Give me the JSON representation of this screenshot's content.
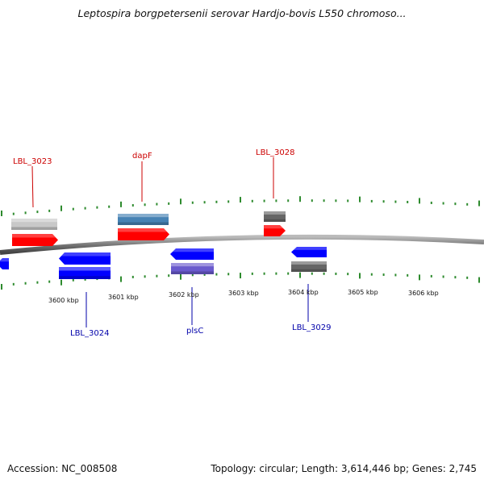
{
  "title": "Leptospira borgpetersenii serovar Hardjo-bovis L550 chromoso...",
  "footer": {
    "accession": "Accession: NC_008508",
    "info": "Topology: circular; Length: 3,614,446 bp; Genes: 2,745"
  },
  "colors": {
    "forward_red": "#ff0000",
    "reverse_blue": "#0000ff",
    "steelblue": "#4682b4",
    "lightgray": "#c8c8c8",
    "darkgray": "#666666",
    "slateblue": "#6a5acd",
    "tick_green": "#2e8b2e",
    "label_red": "#cc0000",
    "label_blue": "#0000aa"
  },
  "scale_labels": [
    "3600 kbp",
    "3601 kbp",
    "3602 kbp",
    "3603 kbp",
    "3604 kbp",
    "3605 kbp",
    "3606 kbp"
  ],
  "gene_labels": [
    {
      "text": "LBL_3023",
      "strand": "forward"
    },
    {
      "text": "dapF",
      "strand": "forward"
    },
    {
      "text": "LBL_3028",
      "strand": "forward"
    },
    {
      "text": "LBL_3024",
      "strand": "reverse"
    },
    {
      "text": "plsC",
      "strand": "reverse"
    },
    {
      "text": "LBL_3029",
      "strand": "reverse"
    }
  ]
}
